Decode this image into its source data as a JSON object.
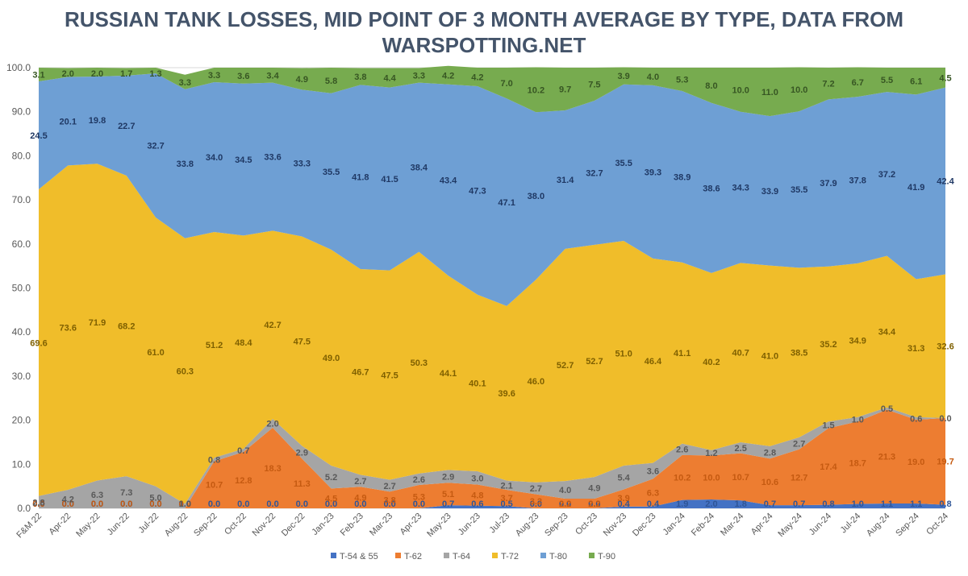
{
  "chart_data": {
    "type": "area",
    "title": [
      "RUSSIAN TANK LOSSES, MID POINT OF 3 MONTH AVERAGE BY TYPE, DATA FROM",
      "WARSPOTTING.NET"
    ],
    "stacked": true,
    "ylim": [
      0,
      100
    ],
    "yticks": [
      "0.0",
      "10.0",
      "20.0",
      "30.0",
      "40.0",
      "50.0",
      "60.0",
      "70.0",
      "80.0",
      "90.0",
      "100.0"
    ],
    "grid": true,
    "legend_position": "bottom",
    "categories": [
      "F&M 22",
      "Apr-22",
      "May-22",
      "Jun-22",
      "Jul-22",
      "Aug-22",
      "Sep-22",
      "Oct-22",
      "Nov-22",
      "Dec-22",
      "Jan-23",
      "Feb-23",
      "Mar-23",
      "Apr-23",
      "May-23",
      "Jun-23",
      "Jul-23",
      "Aug-23",
      "Sep-23",
      "Oct-23",
      "Nov-23",
      "Dec-23",
      "Jan-24",
      "Feb-24",
      "Mar-24",
      "Apr-24",
      "May-24",
      "Jun-24",
      "Jul-24",
      "Aug-24",
      "Sep-24",
      "Oct-24"
    ],
    "series": [
      {
        "name": "T-54 & 55",
        "color": "#4472c4",
        "label_color": "#2f5597",
        "values": [
          0.0,
          0.0,
          0.0,
          0.0,
          0.0,
          0.0,
          0.0,
          0.0,
          0.0,
          0.0,
          0.0,
          0.0,
          0.0,
          0.0,
          0.7,
          0.6,
          0.5,
          0.0,
          0.0,
          0.0,
          0.4,
          0.4,
          1.9,
          2.0,
          1.8,
          0.7,
          0.7,
          0.8,
          1.0,
          1.1,
          1.1,
          0.8
        ]
      },
      {
        "name": "T-62",
        "color": "#ed7d31",
        "label_color": "#c55a11",
        "values": [
          0.0,
          0.0,
          0.0,
          0.0,
          0.0,
          0.0,
          10.7,
          12.8,
          18.3,
          11.3,
          4.5,
          4.9,
          3.8,
          5.3,
          5.1,
          4.8,
          3.7,
          3.2,
          2.2,
          2.2,
          3.9,
          6.3,
          10.2,
          10.0,
          10.7,
          10.6,
          12.7,
          17.4,
          18.7,
          21.3,
          19.0,
          19.7
        ]
      },
      {
        "name": "T-64",
        "color": "#a5a5a5",
        "label_color": "#595959",
        "values": [
          2.8,
          4.2,
          6.3,
          7.3,
          5.0,
          1.0,
          0.8,
          0.7,
          2.0,
          2.9,
          5.2,
          2.7,
          2.7,
          2.6,
          2.9,
          3.0,
          2.1,
          2.7,
          4.0,
          4.9,
          5.4,
          3.6,
          2.6,
          1.2,
          2.5,
          2.8,
          2.7,
          1.5,
          1.0,
          0.5,
          0.6,
          0.0
        ]
      },
      {
        "name": "T-72",
        "color": "#f0bd2a",
        "label_color": "#7f6000",
        "values": [
          69.6,
          73.6,
          71.9,
          68.2,
          61.0,
          60.3,
          51.2,
          48.4,
          42.7,
          47.5,
          49.0,
          46.7,
          47.5,
          50.3,
          44.1,
          40.1,
          39.6,
          46.0,
          52.7,
          52.7,
          51.0,
          46.4,
          41.1,
          40.2,
          40.7,
          41.0,
          38.5,
          35.2,
          34.9,
          34.4,
          31.3,
          32.6
        ]
      },
      {
        "name": "T-80",
        "color": "#6e9fd4",
        "label_color": "#1f3864",
        "values": [
          24.5,
          20.1,
          19.8,
          22.7,
          32.7,
          33.8,
          34.0,
          34.5,
          33.6,
          33.3,
          35.5,
          41.8,
          41.5,
          38.4,
          43.4,
          47.3,
          47.1,
          38.0,
          31.4,
          32.7,
          35.5,
          39.3,
          38.9,
          38.6,
          34.3,
          33.9,
          35.5,
          37.9,
          37.8,
          37.2,
          41.9,
          42.4
        ]
      },
      {
        "name": "T-90",
        "color": "#77ab4f",
        "label_color": "#375623",
        "values": [
          3.1,
          2.0,
          2.0,
          1.7,
          1.3,
          3.3,
          3.3,
          3.6,
          3.4,
          4.9,
          5.8,
          3.8,
          4.4,
          3.3,
          4.2,
          4.2,
          7.0,
          10.2,
          9.7,
          7.5,
          3.9,
          4.0,
          5.3,
          8.0,
          10.0,
          11.0,
          10.0,
          7.2,
          6.7,
          5.5,
          6.1,
          4.5
        ]
      }
    ]
  }
}
